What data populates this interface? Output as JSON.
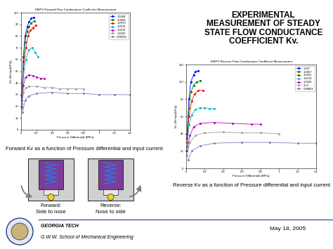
{
  "title_lines": [
    "EXPERIMENTAL",
    "MEASUREMENT OF STEADY",
    "STATE FLOW CONDUCTANCE",
    "COEFFICIENT Kv."
  ],
  "chart_data": [
    {
      "type": "line",
      "title": "EMPV Forward Flow Conductance Coefficient Measurement",
      "x_label": "Pressure Differential (MPa)",
      "y_label": "Kv (l/h/sqrt(kPa))",
      "xlim": [
        0,
        1.4
      ],
      "ylim": [
        0,
        100
      ],
      "xticks": [
        0,
        0.2,
        0.4,
        0.6,
        0.8,
        1,
        1.2,
        1.4
      ],
      "yticks": [
        0,
        10,
        20,
        30,
        40,
        50,
        60,
        70,
        80,
        90,
        100
      ],
      "legend": "upper right",
      "marker": "circle",
      "series": [
        {
          "name": "1.5044",
          "color": "#0000ff",
          "x": [
            0.01,
            0.03,
            0.05,
            0.08,
            0.1,
            0.13,
            0.16
          ],
          "values": [
            30,
            62,
            80,
            88,
            92,
            95,
            96
          ]
        },
        {
          "name": "1.3993",
          "color": "#008000",
          "x": [
            0.01,
            0.03,
            0.05,
            0.08,
            0.1,
            0.13,
            0.17
          ],
          "values": [
            28,
            58,
            75,
            84,
            88,
            91,
            93
          ]
        },
        {
          "name": "1.2979",
          "color": "#ff0000",
          "x": [
            0.01,
            0.03,
            0.06,
            0.09,
            0.12,
            0.15,
            0.19
          ],
          "values": [
            25,
            52,
            70,
            80,
            85,
            87,
            89
          ]
        },
        {
          "name": "1.2578",
          "color": "#00bfbf",
          "x": [
            0.01,
            0.03,
            0.06,
            0.1,
            0.14,
            0.18,
            0.22
          ],
          "values": [
            22,
            45,
            60,
            68,
            70,
            66,
            62
          ]
        },
        {
          "name": "1.2074",
          "color": "#bf00bf",
          "x": [
            0.01,
            0.03,
            0.06,
            0.1,
            0.15,
            0.2,
            0.25,
            0.3
          ],
          "values": [
            20,
            38,
            45,
            47,
            46,
            45,
            44,
            44
          ]
        },
        {
          "name": "1.1025",
          "color": "#a0a0a0",
          "x": [
            0.01,
            0.03,
            0.06,
            0.1,
            0.2,
            0.3,
            0.4,
            0.5,
            0.6,
            0.7,
            0.8
          ],
          "values": [
            18,
            32,
            36,
            37,
            37,
            36,
            36,
            35,
            35,
            35,
            35
          ]
        },
        {
          "name": "0.95095",
          "color": "#8080c0",
          "x": [
            0.02,
            0.05,
            0.1,
            0.2,
            0.4,
            0.6,
            0.8,
            1.0,
            1.2,
            1.4
          ],
          "values": [
            15,
            25,
            29,
            31,
            32,
            31,
            31,
            30,
            30,
            30
          ]
        }
      ]
    },
    {
      "type": "line",
      "title": "EMPV Reverse Flow Conductance Coefficient Measurement",
      "x_label": "Pressure Differential (MPa)",
      "y_label": "Kv (l/h/sqrt(kPa))",
      "xlim": [
        0,
        1.4
      ],
      "ylim": [
        0,
        120
      ],
      "xticks": [
        0,
        0.2,
        0.4,
        0.6,
        0.8,
        1,
        1.2,
        1.4
      ],
      "yticks": [
        0,
        20,
        40,
        60,
        80,
        100,
        120
      ],
      "legend": "upper right",
      "marker": "circle",
      "series": [
        {
          "name": "1.327",
          "color": "#0000ff",
          "x": [
            0.01,
            0.03,
            0.05,
            0.08,
            0.1,
            0.13
          ],
          "values": [
            40,
            80,
            100,
            108,
            112,
            113
          ]
        },
        {
          "name": "1.2927",
          "color": "#008000",
          "x": [
            0.01,
            0.03,
            0.05,
            0.08,
            0.11,
            0.15
          ],
          "values": [
            35,
            70,
            88,
            96,
            100,
            101
          ]
        },
        {
          "name": "1.2551",
          "color": "#ff0000",
          "x": [
            0.01,
            0.03,
            0.06,
            0.09,
            0.13,
            0.18
          ],
          "values": [
            30,
            60,
            78,
            86,
            90,
            90
          ]
        },
        {
          "name": "1.2074",
          "color": "#00bfbf",
          "x": [
            0.01,
            0.03,
            0.06,
            0.1,
            0.15,
            0.2,
            0.25,
            0.3
          ],
          "values": [
            25,
            50,
            62,
            68,
            70,
            70,
            69,
            69
          ]
        },
        {
          "name": "1.1626",
          "color": "#bf00bf",
          "x": [
            0.01,
            0.04,
            0.08,
            0.15,
            0.3,
            0.5,
            0.7,
            0.8
          ],
          "values": [
            20,
            38,
            48,
            52,
            53,
            52,
            51,
            51
          ]
        },
        {
          "name": "1.14",
          "color": "#a0a0a0",
          "x": [
            0.01,
            0.04,
            0.1,
            0.2,
            0.4,
            0.6,
            0.8,
            1.0
          ],
          "values": [
            15,
            30,
            38,
            41,
            42,
            41,
            41,
            40
          ]
        },
        {
          "name": "0.98461",
          "color": "#8080c0",
          "x": [
            0.02,
            0.06,
            0.15,
            0.3,
            0.6,
            0.9,
            1.2,
            1.4
          ],
          "values": [
            10,
            20,
            26,
            29,
            30,
            30,
            29,
            29
          ]
        }
      ]
    }
  ],
  "captions": [
    "Forward Kv as a function of Pressure differential and input current",
    "Reverse Kv as a function of Pressure differential and input current"
  ],
  "diagrams": [
    {
      "label_lines": [
        "Forward:",
        "Side to nose"
      ]
    },
    {
      "label_lines": [
        "Reverse:",
        "Nose to side"
      ]
    }
  ],
  "footer": {
    "institution": "GEORGIA TECH",
    "school": "G.W.W. School of Mechanical Engineering",
    "date": "May 18, 2005"
  }
}
